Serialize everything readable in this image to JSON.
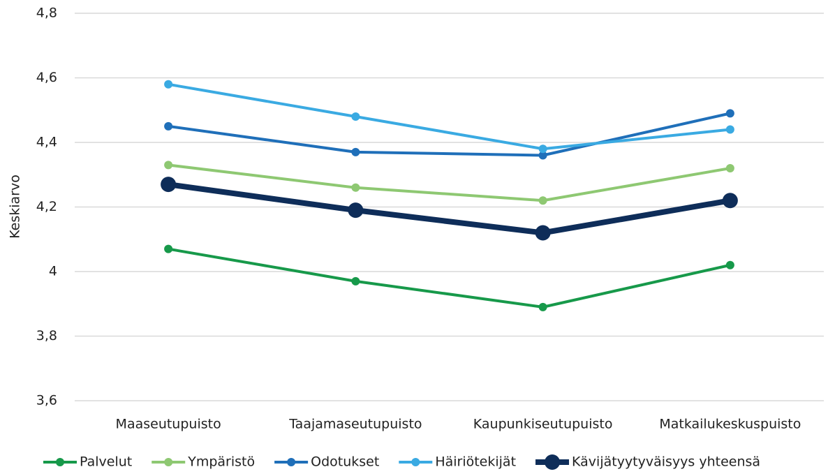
{
  "chart_data": {
    "type": "line",
    "y_label": "Keskiarvo",
    "categories": [
      "Maaseutupuisto",
      "Taajamaseutupuisto",
      "Kaupunkiseutupuisto",
      "Matkailukeskuspuisto"
    ],
    "series": [
      {
        "name": "Palvelut",
        "color": "#17994a",
        "values": [
          4.07,
          3.97,
          3.89,
          4.02
        ]
      },
      {
        "name": "Ympäristö",
        "color": "#8ec872",
        "values": [
          4.33,
          4.26,
          4.22,
          4.32
        ]
      },
      {
        "name": "Odotukset",
        "color": "#1f6fb9",
        "values": [
          4.45,
          4.37,
          4.36,
          4.49
        ]
      },
      {
        "name": "Häiriötekijät",
        "color": "#3aaae2",
        "values": [
          4.58,
          4.48,
          4.38,
          4.44
        ]
      },
      {
        "name": "Kävijätyytyväisyys yhteensä",
        "color": "#0e2d59",
        "values": [
          4.27,
          4.19,
          4.12,
          4.22
        ]
      }
    ],
    "ylim": [
      3.6,
      4.8
    ],
    "yticks": [
      {
        "value": 3.6,
        "label": "3,6"
      },
      {
        "value": 3.8,
        "label": "3,8"
      },
      4,
      {
        "value": 4.2,
        "label": "4,2"
      },
      {
        "value": 4.4,
        "label": "4,4"
      },
      {
        "value": 4.6,
        "label": "4,6"
      },
      {
        "value": 4.8,
        "label": "4,8"
      }
    ],
    "grid": true,
    "legend": "bottom"
  }
}
